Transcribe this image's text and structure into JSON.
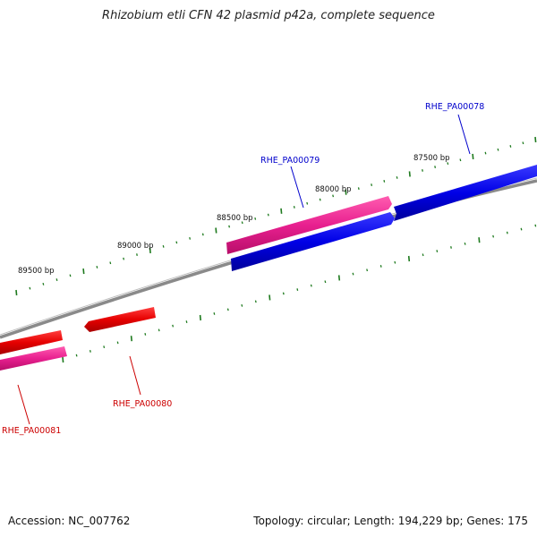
{
  "title": "Rhizobium etli CFN 42 plasmid p42a, complete sequence",
  "footer": {
    "accession": "Accession: NC_007762",
    "summary": "Topology: circular; Length: 194,229 bp; Genes: 175"
  },
  "colors": {
    "backbone": "#7a7a7a",
    "forward_cds": "#0000e6",
    "forward_label": "#0000cc",
    "reverse_cds": "#e60000",
    "reverse_label": "#cc0000",
    "gene_pink": "#e8208f",
    "tick": "#1e7a1e"
  },
  "ticks": {
    "upper_labels": [
      "87500 bp",
      "88000 bp",
      "88500 bp",
      "89000 bp",
      "89500 bp"
    ]
  },
  "genes": {
    "RHE_PA00078": {
      "label": "RHE_PA00078",
      "strand": "forward"
    },
    "RHE_PA00079": {
      "label": "RHE_PA00079",
      "strand": "forward"
    },
    "RHE_PA00080": {
      "label": "RHE_PA00080",
      "strand": "reverse"
    },
    "RHE_PA00081": {
      "label": "RHE_PA00081",
      "strand": "reverse"
    }
  }
}
